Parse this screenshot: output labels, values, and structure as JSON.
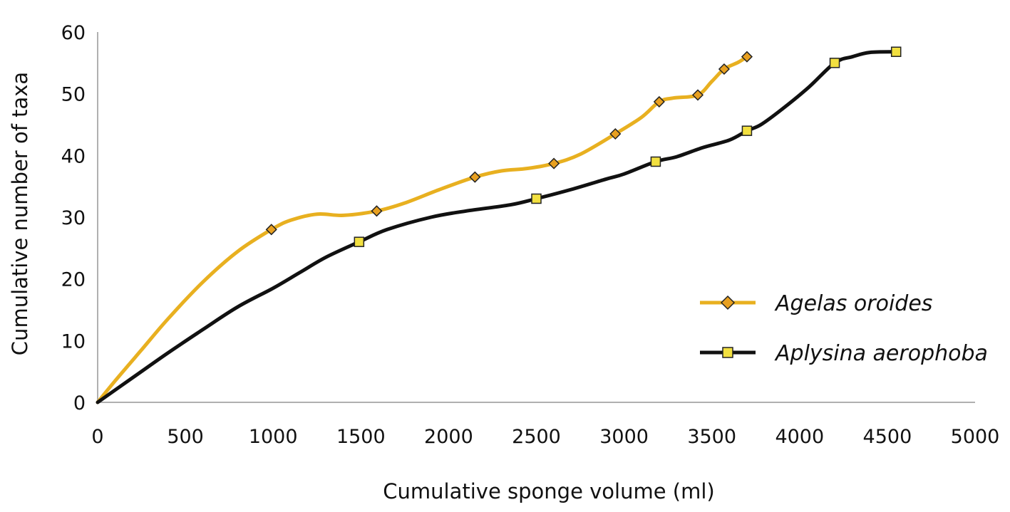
{
  "chart_data": {
    "type": "line",
    "title": "",
    "xlabel": "Cumulative sponge volume (ml)",
    "ylabel": "Cumulative number of taxa",
    "xlim": [
      0,
      5000
    ],
    "ylim": [
      0,
      60
    ],
    "x_ticks": [
      "0",
      "500",
      "1000",
      "1500",
      "2000",
      "2500",
      "3000",
      "3500",
      "4000",
      "4500",
      "5000"
    ],
    "y_ticks": [
      "0",
      "10",
      "20",
      "30",
      "40",
      "50",
      "60"
    ],
    "grid": false,
    "legend_position": "right",
    "series": [
      {
        "name": "Agelas oroides",
        "color": "#E8B020",
        "marker_color": "#E8A020",
        "marker": "diamond",
        "points": [
          [
            0,
            0
          ],
          [
            100,
            3.5
          ],
          [
            250,
            8.5
          ],
          [
            400,
            13.5
          ],
          [
            600,
            19.5
          ],
          [
            800,
            24.5
          ],
          [
            990,
            28
          ],
          [
            1100,
            29.5
          ],
          [
            1250,
            30.5
          ],
          [
            1400,
            30.3
          ],
          [
            1590,
            31
          ],
          [
            1750,
            32.3
          ],
          [
            1950,
            34.5
          ],
          [
            2150,
            36.5
          ],
          [
            2300,
            37.5
          ],
          [
            2450,
            37.9
          ],
          [
            2600,
            38.7
          ],
          [
            2750,
            40.2
          ],
          [
            2950,
            43.5
          ],
          [
            3100,
            46.2
          ],
          [
            3200,
            48.7
          ],
          [
            3280,
            49.3
          ],
          [
            3420,
            49.8
          ],
          [
            3500,
            52
          ],
          [
            3570,
            54
          ],
          [
            3650,
            55.1
          ],
          [
            3700,
            56
          ]
        ],
        "marker_points": [
          [
            990,
            28
          ],
          [
            1590,
            31
          ],
          [
            2150,
            36.5
          ],
          [
            2600,
            38.7
          ],
          [
            2950,
            43.5
          ],
          [
            3200,
            48.7
          ],
          [
            3420,
            49.8
          ],
          [
            3570,
            54
          ],
          [
            3700,
            56
          ]
        ]
      },
      {
        "name": "Aplysina aerophoba",
        "color": "#111111",
        "marker_color": "#F2E040",
        "marker": "square",
        "points": [
          [
            0,
            0
          ],
          [
            200,
            4
          ],
          [
            400,
            8
          ],
          [
            600,
            11.8
          ],
          [
            800,
            15.5
          ],
          [
            1000,
            18.5
          ],
          [
            1150,
            21
          ],
          [
            1300,
            23.5
          ],
          [
            1490,
            26
          ],
          [
            1650,
            28
          ],
          [
            1900,
            30
          ],
          [
            2100,
            31
          ],
          [
            2350,
            32
          ],
          [
            2500,
            33
          ],
          [
            2700,
            34.5
          ],
          [
            2900,
            36.2
          ],
          [
            3000,
            37
          ],
          [
            3180,
            39
          ],
          [
            3300,
            39.8
          ],
          [
            3450,
            41.3
          ],
          [
            3600,
            42.5
          ],
          [
            3700,
            44
          ],
          [
            3780,
            45
          ],
          [
            3900,
            47.5
          ],
          [
            4050,
            51
          ],
          [
            4200,
            55
          ],
          [
            4300,
            56
          ],
          [
            4400,
            56.7
          ],
          [
            4550,
            56.8
          ]
        ],
        "marker_points": [
          [
            1490,
            26
          ],
          [
            2500,
            33
          ],
          [
            3180,
            39
          ],
          [
            3700,
            44
          ],
          [
            4200,
            55
          ],
          [
            4550,
            56.8
          ]
        ]
      }
    ]
  }
}
